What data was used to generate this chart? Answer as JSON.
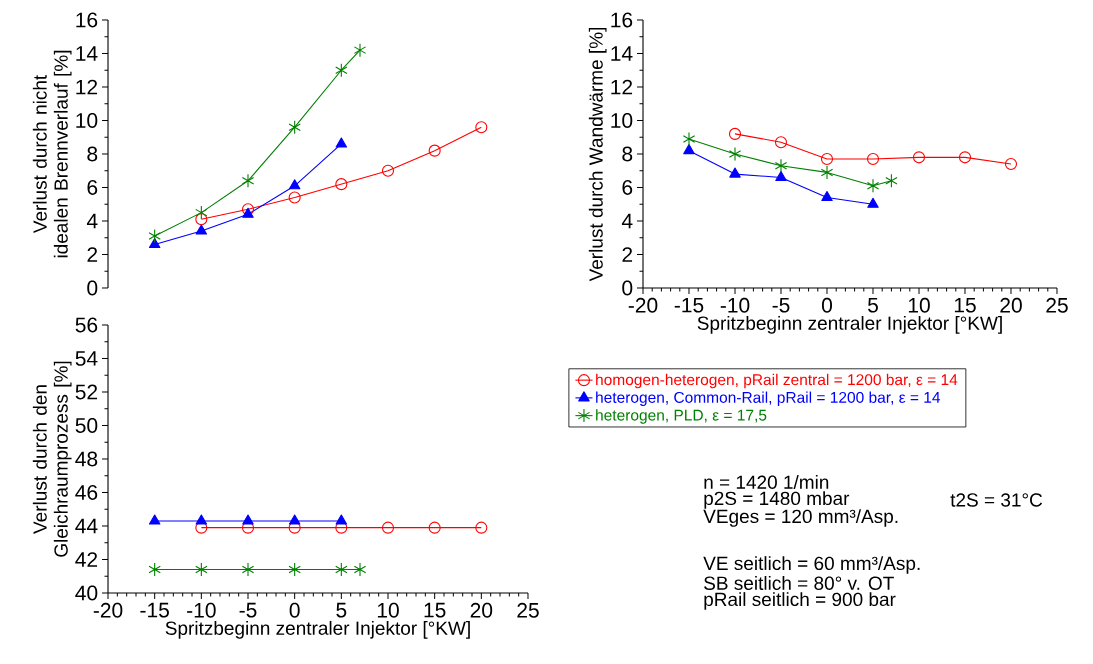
{
  "chart_data": [
    {
      "type": "line",
      "ylabel": "Verlust durch nicht idealen Brennverlauf [%]",
      "xlim": [
        -20,
        25
      ],
      "xticks": [
        -20,
        -15,
        -10,
        -5,
        0,
        5,
        10,
        15,
        20,
        25
      ],
      "ylim": [
        0,
        16
      ],
      "yticks": [
        0,
        2,
        4,
        6,
        8,
        10,
        12,
        14,
        16
      ],
      "tick_labels": "y",
      "series": [
        {
          "color": "#ff0000",
          "marker": "circle",
          "x": [
            -10,
            -5,
            0,
            5,
            10,
            15,
            20
          ],
          "values": [
            4.1,
            4.7,
            5.4,
            6.2,
            7.0,
            8.2,
            9.6
          ]
        },
        {
          "color": "#0000ff",
          "marker": "triangle",
          "x": [
            -15,
            -10,
            -5,
            0,
            5
          ],
          "values": [
            2.6,
            3.4,
            4.4,
            6.1,
            8.6
          ]
        },
        {
          "color": "#008000",
          "marker": "cross",
          "x": [
            -15,
            -10,
            -5,
            0,
            5,
            7
          ],
          "values": [
            3.1,
            4.5,
            6.4,
            9.6,
            13.0,
            14.2
          ]
        }
      ]
    },
    {
      "type": "line",
      "xlabel": "Spritzbeginn zentraler Injektor [°KW]",
      "ylabel": "Verlust durch Wandwärme [%]",
      "xlim": [
        -20,
        25
      ],
      "xticks": [
        -20,
        -15,
        -10,
        -5,
        0,
        5,
        10,
        15,
        20,
        25
      ],
      "ylim": [
        0,
        16
      ],
      "yticks": [
        0,
        2,
        4,
        6,
        8,
        10,
        12,
        14,
        16
      ],
      "legend": "bottom",
      "series": [
        {
          "name": "homogen-heterogen, pRail zentral = 1200 bar, ε = 14",
          "color": "#ff0000",
          "marker": "circle",
          "x": [
            -10,
            -5,
            0,
            5,
            10,
            15,
            20
          ],
          "values": [
            9.2,
            8.7,
            7.7,
            7.7,
            7.8,
            7.8,
            7.4
          ]
        },
        {
          "name": "heterogen, Common-Rail, pRail = 1200 bar, ε = 14",
          "color": "#0000ff",
          "marker": "triangle",
          "x": [
            -15,
            -10,
            -5,
            0,
            5
          ],
          "values": [
            8.2,
            6.8,
            6.6,
            5.4,
            5.0
          ]
        },
        {
          "name": "heterogen, PLD, ε = 17,5",
          "color": "#008000",
          "marker": "cross",
          "x": [
            -15,
            -10,
            -5,
            0,
            5,
            7
          ],
          "values": [
            8.9,
            8.0,
            7.3,
            6.9,
            6.1,
            6.4
          ]
        }
      ],
      "annotations": [
        "n = 1420 1/min",
        "p2S = 1480 mbar",
        "t2S = 31°C",
        "VEges = 120 mm³/Asp.",
        "VE seitlich = 60 mm³/Asp.",
        "SB seitlich = 80° v. OT",
        "pRail seitlich = 900 bar"
      ]
    },
    {
      "type": "line",
      "xlabel": "Spritzbeginn zentraler Injektor [°KW]",
      "ylabel": "Verlust durch den Gleichraumprozess  [%]",
      "xlim": [
        -20,
        25
      ],
      "xticks": [
        -20,
        -15,
        -10,
        -5,
        0,
        5,
        10,
        15,
        20,
        25
      ],
      "ylim": [
        40,
        56
      ],
      "yticks": [
        40,
        42,
        44,
        46,
        48,
        50,
        52,
        54,
        56
      ],
      "series": [
        {
          "color": "#ff0000",
          "marker": "circle",
          "x": [
            -10,
            -5,
            0,
            5,
            10,
            15,
            20
          ],
          "values": [
            43.9,
            43.9,
            43.9,
            43.9,
            43.9,
            43.9,
            43.9
          ]
        },
        {
          "color": "#0000ff",
          "marker": "triangle",
          "x": [
            -15,
            -10,
            -5,
            0,
            5
          ],
          "values": [
            44.3,
            44.3,
            44.3,
            44.3,
            44.3
          ]
        },
        {
          "color": "#008000",
          "marker": "cross",
          "x": [
            -15,
            -10,
            -5,
            0,
            5,
            7
          ],
          "values": [
            41.4,
            41.4,
            41.4,
            41.4,
            41.4,
            41.4
          ]
        }
      ]
    }
  ]
}
